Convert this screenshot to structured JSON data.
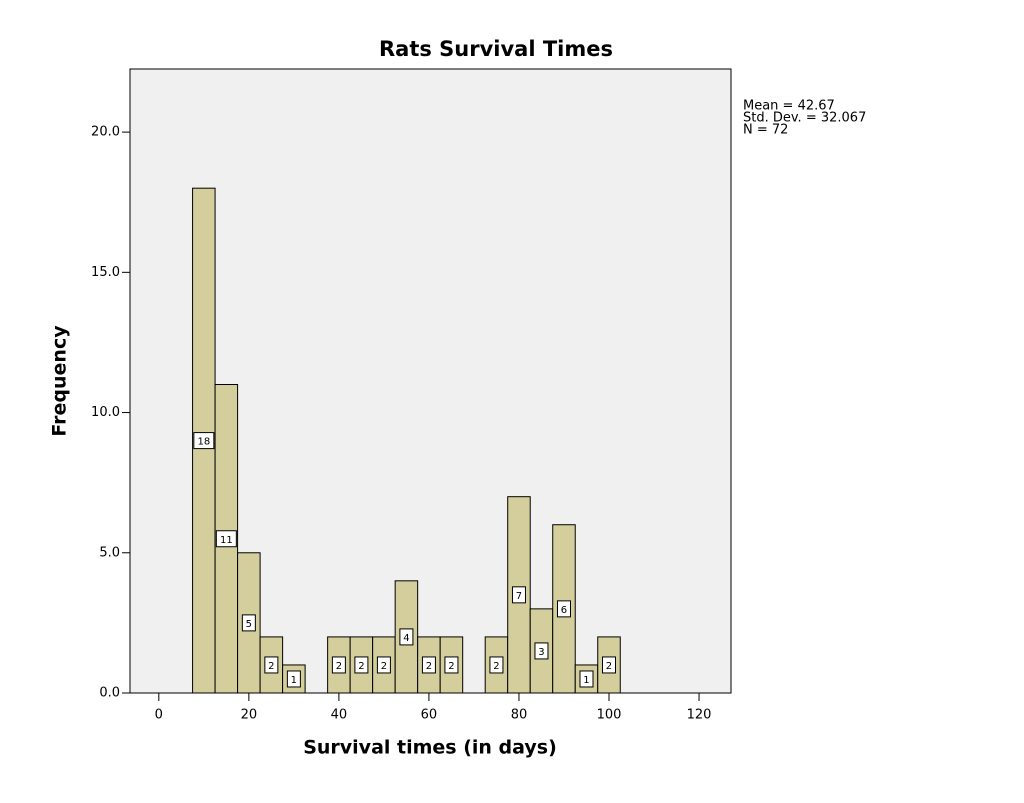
{
  "chart_data": {
    "type": "histogram",
    "title": "Rats Survival Times",
    "x_label": "Survival times (in days)",
    "y_label": "Frequency",
    "bins": [
      7.5,
      12.5,
      17.5,
      22.5,
      27.5,
      32.5,
      37.5,
      42.5,
      47.5,
      52.5,
      57.5,
      62.5,
      67.5,
      72.5,
      77.5,
      82.5,
      87.5,
      92.5,
      97.5,
      102.5
    ],
    "values": [
      18,
      11,
      5,
      2,
      1,
      0,
      2,
      2,
      2,
      4,
      2,
      2,
      0,
      2,
      7,
      3,
      6,
      1,
      2
    ],
    "color": "#d3ce9b",
    "xlim": [
      -6.4,
      127.1
    ],
    "xticks": [
      0,
      20,
      40,
      60,
      80,
      100,
      120
    ],
    "ylim": [
      0,
      22.25
    ],
    "yticks": [
      {
        "value": 0,
        "label": "0.0"
      },
      {
        "value": 5,
        "label": "5.0"
      },
      {
        "value": 10,
        "label": "10.0"
      },
      {
        "value": 15,
        "label": "15.0"
      },
      {
        "value": 20,
        "label": "20.0"
      }
    ],
    "annotations": [
      "Mean = 42.67",
      "Std. Dev. = 32.067",
      "N = 72"
    ]
  }
}
